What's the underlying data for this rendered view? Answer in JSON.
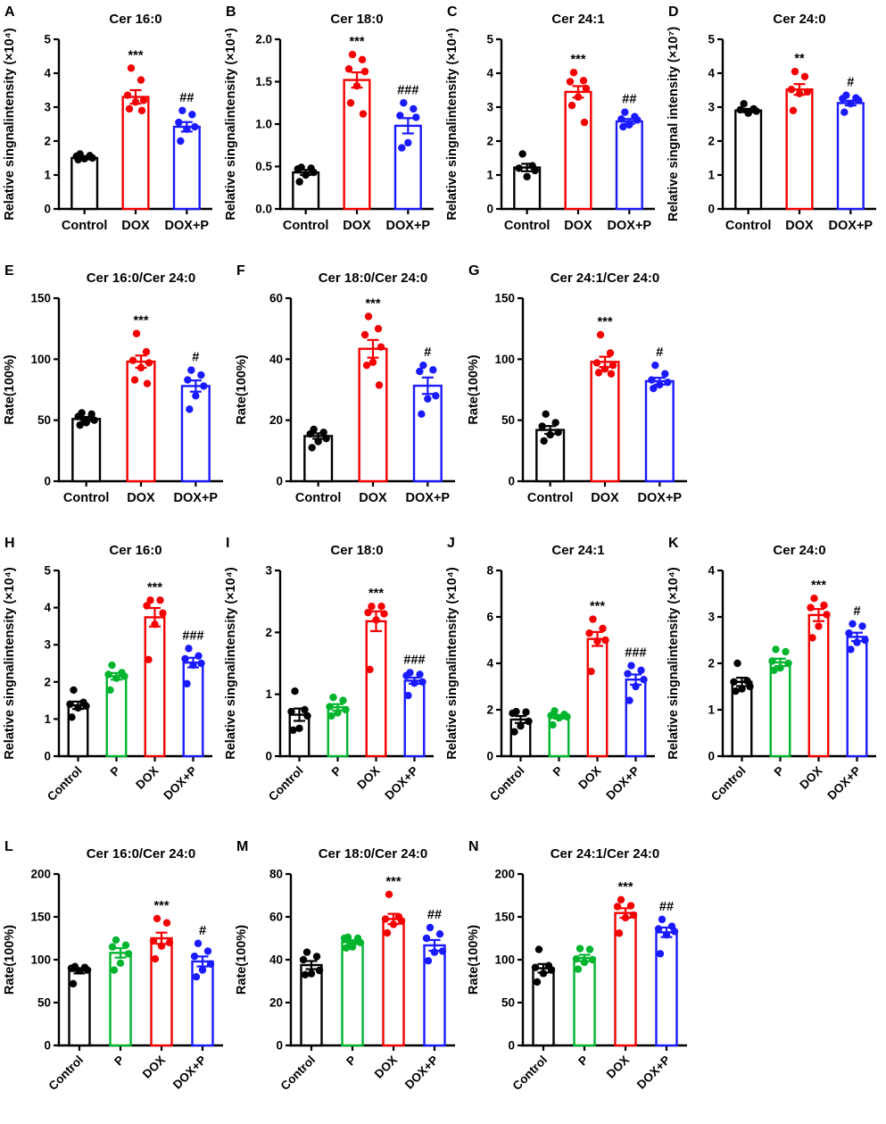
{
  "figure": {
    "background": "#ffffff"
  },
  "colors": {
    "black": "#000000",
    "red": "#f50000",
    "green": "#00b52d",
    "blue": "#1a1aff"
  },
  "chart_data": [
    {
      "letter": "A",
      "row": 0,
      "type": "bar",
      "title": "Cer 16:0",
      "ylabel": "Relative singnalintensity (×10⁴)",
      "ylim": [
        0,
        5
      ],
      "yticks": [
        0,
        1,
        2,
        3,
        4,
        5
      ],
      "ytick_labels": [
        "0",
        "1",
        "2",
        "3",
        "4",
        "5"
      ],
      "categories": [
        "Control",
        "DOX",
        "DOX+P"
      ],
      "bar_colors": [
        "black",
        "red",
        "blue"
      ],
      "means": [
        1.5,
        3.3,
        2.42
      ],
      "sems": [
        0.04,
        0.2,
        0.14
      ],
      "annotations": [
        "",
        "***",
        "##"
      ],
      "points": [
        [
          1.62,
          1.57,
          1.55,
          1.5,
          1.48,
          1.45
        ],
        [
          4.15,
          3.8,
          3.35,
          3.2,
          3.15,
          2.95,
          2.9
        ],
        [
          2.9,
          2.78,
          2.55,
          2.42,
          2.35,
          2.0
        ]
      ]
    },
    {
      "letter": "B",
      "row": 0,
      "type": "bar",
      "title": "Cer 18:0",
      "ylabel": "Relative singnalintensity (×10⁴)",
      "ylim": [
        0,
        2
      ],
      "yticks": [
        0,
        0.5,
        1,
        1.5,
        2
      ],
      "ytick_labels": [
        "0.0",
        "0.5",
        "1.0",
        "1.5",
        "2.0"
      ],
      "categories": [
        "Control",
        "DOX",
        "DOX+P"
      ],
      "bar_colors": [
        "black",
        "red",
        "blue"
      ],
      "means": [
        0.43,
        1.52,
        0.98
      ],
      "sems": [
        0.03,
        0.09,
        0.09
      ],
      "annotations": [
        "",
        "***",
        "###"
      ],
      "points": [
        [
          0.49,
          0.48,
          0.47,
          0.43,
          0.4,
          0.32
        ],
        [
          1.82,
          1.76,
          1.65,
          1.62,
          1.45,
          1.25,
          1.12
        ],
        [
          1.25,
          1.18,
          1.1,
          1.08,
          0.78,
          0.72
        ]
      ]
    },
    {
      "letter": "C",
      "row": 0,
      "type": "bar",
      "title": "Cer 24:1",
      "ylabel": "Relative singnalintensity (×10⁴)",
      "ylim": [
        0,
        5
      ],
      "yticks": [
        0,
        1,
        2,
        3,
        4,
        5
      ],
      "ytick_labels": [
        "0",
        "1",
        "2",
        "3",
        "4",
        "5"
      ],
      "categories": [
        "Control",
        "DOX",
        "DOX+P"
      ],
      "bar_colors": [
        "black",
        "red",
        "blue"
      ],
      "means": [
        1.22,
        3.45,
        2.58
      ],
      "sems": [
        0.11,
        0.17,
        0.07
      ],
      "annotations": [
        "",
        "***",
        "##"
      ],
      "points": [
        [
          1.62,
          1.27,
          1.2,
          1.13,
          0.95
        ],
        [
          4.02,
          3.78,
          3.75,
          3.55,
          3.3,
          3.05,
          2.55
        ],
        [
          2.85,
          2.72,
          2.65,
          2.62,
          2.48,
          2.42
        ]
      ]
    },
    {
      "letter": "D",
      "row": 0,
      "type": "bar",
      "title": "Cer 24:0",
      "ylabel": "Relative singnal intensity (×10⁷)",
      "ylim": [
        0,
        5
      ],
      "yticks": [
        0,
        1,
        2,
        3,
        4,
        5
      ],
      "ytick_labels": [
        "0",
        "1",
        "2",
        "3",
        "4",
        "5"
      ],
      "categories": [
        "Control",
        "DOX",
        "DOX+P"
      ],
      "bar_colors": [
        "black",
        "red",
        "blue"
      ],
      "means": [
        2.9,
        3.52,
        3.12
      ],
      "sems": [
        0.05,
        0.16,
        0.07
      ],
      "annotations": [
        "",
        "**",
        "#"
      ],
      "points": [
        [
          3.1,
          2.95,
          2.92,
          2.88,
          2.82
        ],
        [
          4.05,
          3.9,
          3.52,
          3.45,
          3.4,
          2.9
        ],
        [
          3.35,
          3.27,
          3.25,
          3.2,
          3.1,
          2.85
        ]
      ]
    },
    {
      "letter": "E",
      "row": 1,
      "type": "bar",
      "title": "Cer 16:0/Cer 24:0",
      "ylabel": "Rate(100%)",
      "ylim": [
        0,
        150
      ],
      "yticks": [
        0,
        50,
        100,
        150
      ],
      "ytick_labels": [
        "0",
        "50",
        "100",
        "150"
      ],
      "categories": [
        "Control",
        "DOX",
        "DOX+P"
      ],
      "bar_colors": [
        "black",
        "red",
        "blue"
      ],
      "means": [
        51,
        98,
        78
      ],
      "sems": [
        1.7,
        5,
        4.6
      ],
      "annotations": [
        "",
        "***",
        "#"
      ],
      "points": [
        [
          56,
          55,
          53,
          50,
          48,
          46
        ],
        [
          121,
          106,
          99,
          97,
          93,
          83,
          80
        ],
        [
          91,
          87,
          83,
          78,
          70,
          59
        ]
      ]
    },
    {
      "letter": "F",
      "row": 1,
      "type": "bar",
      "title": "Cer 18:0/Cer 24:0",
      "ylabel": "Rate(100%)",
      "ylim": [
        0,
        60
      ],
      "yticks": [
        0,
        20,
        40,
        60
      ],
      "ytick_labels": [
        "0",
        "20",
        "40",
        "60"
      ],
      "categories": [
        "Control",
        "DOX",
        "DOX+P"
      ],
      "bar_colors": [
        "black",
        "red",
        "blue"
      ],
      "means": [
        14.8,
        43.4,
        31.3
      ],
      "sems": [
        0.9,
        2.9,
        2.7
      ],
      "annotations": [
        "",
        "***",
        "#"
      ],
      "points": [
        [
          17,
          16,
          15.5,
          14,
          13,
          11
        ],
        [
          54,
          50,
          48,
          44,
          39,
          38,
          31.5
        ],
        [
          38,
          36.5,
          36,
          28,
          27,
          22
        ]
      ]
    },
    {
      "letter": "G",
      "row": 1,
      "type": "bar",
      "title": "Cer 24:1/Cer 24:0",
      "ylabel": "Rate(100%)",
      "ylim": [
        0,
        150
      ],
      "yticks": [
        0,
        50,
        100,
        150
      ],
      "ytick_labels": [
        "0",
        "50",
        "100",
        "150"
      ],
      "categories": [
        "Control",
        "DOX",
        "DOX+P"
      ],
      "bar_colors": [
        "black",
        "red",
        "blue"
      ],
      "means": [
        42,
        97.8,
        82
      ],
      "sems": [
        3.2,
        4.2,
        2.8
      ],
      "annotations": [
        "",
        "***",
        "#"
      ],
      "points": [
        [
          55,
          48,
          45,
          40,
          38,
          33
        ],
        [
          120,
          105,
          97,
          95,
          92,
          89,
          88
        ],
        [
          95,
          88,
          83,
          81,
          79,
          76
        ]
      ]
    },
    {
      "letter": "H",
      "row": 2,
      "type": "bar",
      "title": "Cer 16:0",
      "ylabel": "Relative singnalintensity (×10⁴)",
      "ylim": [
        0,
        5
      ],
      "yticks": [
        0,
        1,
        2,
        3,
        4,
        5
      ],
      "ytick_labels": [
        "0",
        "1",
        "2",
        "3",
        "4",
        "5"
      ],
      "categories": [
        "Control",
        "P",
        "DOX",
        "DOX+P"
      ],
      "bar_colors": [
        "black",
        "green",
        "red",
        "blue"
      ],
      "means": [
        1.37,
        2.15,
        3.74,
        2.52
      ],
      "sems": [
        0.1,
        0.09,
        0.25,
        0.13
      ],
      "annotations": [
        "",
        "",
        "***",
        "###"
      ],
      "points": [
        [
          1.78,
          1.45,
          1.4,
          1.35,
          1.3,
          1.05
        ],
        [
          2.45,
          2.25,
          2.2,
          2.15,
          2.1,
          1.78
        ],
        [
          4.2,
          4.2,
          4.05,
          3.85,
          3.55,
          2.6
        ],
        [
          2.9,
          2.7,
          2.62,
          2.5,
          2.45,
          1.95
        ]
      ]
    },
    {
      "letter": "I",
      "row": 2,
      "type": "bar",
      "title": "Cer 18:0",
      "ylabel": "Relative singnalintensity (×10⁴)",
      "ylim": [
        0,
        3
      ],
      "yticks": [
        0,
        1,
        2,
        3
      ],
      "ytick_labels": [
        "0",
        "1",
        "2",
        "3"
      ],
      "categories": [
        "Control",
        "P",
        "DOX",
        "DOX+P"
      ],
      "bar_colors": [
        "black",
        "green",
        "red",
        "blue"
      ],
      "means": [
        0.67,
        0.79,
        2.18,
        1.22
      ],
      "sems": [
        0.1,
        0.05,
        0.16,
        0.05
      ],
      "annotations": [
        "",
        "",
        "***",
        "###"
      ],
      "points": [
        [
          1.05,
          0.75,
          0.72,
          0.65,
          0.45,
          0.42
        ],
        [
          0.95,
          0.9,
          0.8,
          0.75,
          0.7,
          0.65
        ],
        [
          2.42,
          2.42,
          2.32,
          2.3,
          2.2,
          1.4
        ],
        [
          1.35,
          1.32,
          1.3,
          1.2,
          1.18,
          0.98
        ]
      ]
    },
    {
      "letter": "J",
      "row": 2,
      "type": "bar",
      "title": "Cer 24:1",
      "ylabel": "Relative singnalintensity (×10⁴)",
      "ylim": [
        0,
        8
      ],
      "yticks": [
        0,
        2,
        4,
        6,
        8
      ],
      "ytick_labels": [
        "0",
        "2",
        "4",
        "6",
        "8"
      ],
      "categories": [
        "Control",
        "P",
        "DOX",
        "DOX+P"
      ],
      "bar_colors": [
        "black",
        "green",
        "red",
        "blue"
      ],
      "means": [
        1.58,
        1.7,
        5.05,
        3.3
      ],
      "sems": [
        0.15,
        0.08,
        0.3,
        0.22
      ],
      "annotations": [
        "",
        "",
        "***",
        "###"
      ],
      "points": [
        [
          1.92,
          1.9,
          1.85,
          1.5,
          1.3,
          1.05
        ],
        [
          1.95,
          1.8,
          1.75,
          1.7,
          1.65,
          1.35
        ],
        [
          5.9,
          5.5,
          5.3,
          5.0,
          4.95,
          3.65
        ],
        [
          3.9,
          3.7,
          3.55,
          3.3,
          3.0,
          2.4
        ]
      ]
    },
    {
      "letter": "K",
      "row": 2,
      "type": "bar",
      "title": "Cer 24:0",
      "ylabel": "Relative singnalintensity (×10⁴)",
      "ylim": [
        0,
        4
      ],
      "yticks": [
        0,
        1,
        2,
        3,
        4
      ],
      "ytick_labels": [
        "0",
        "1",
        "2",
        "3",
        "4"
      ],
      "categories": [
        "Control",
        "P",
        "DOX",
        "DOX+P"
      ],
      "bar_colors": [
        "black",
        "green",
        "red",
        "blue"
      ],
      "means": [
        1.6,
        2.02,
        3.04,
        2.57
      ],
      "sems": [
        0.09,
        0.08,
        0.13,
        0.09
      ],
      "annotations": [
        "",
        "",
        "***",
        "#"
      ],
      "points": [
        [
          2.0,
          1.62,
          1.6,
          1.5,
          1.45,
          1.4
        ],
        [
          2.3,
          2.25,
          2.05,
          2.0,
          1.9,
          1.85
        ],
        [
          3.4,
          3.25,
          3.2,
          3.05,
          2.8,
          2.55
        ],
        [
          2.85,
          2.8,
          2.65,
          2.5,
          2.45,
          2.3
        ]
      ]
    },
    {
      "letter": "L",
      "row": 3,
      "type": "bar",
      "title": "Cer 16:0/Cer 24:0",
      "ylabel": "Rate(100%)",
      "ylim": [
        0,
        200
      ],
      "yticks": [
        0,
        50,
        100,
        150,
        200
      ],
      "ytick_labels": [
        "0",
        "50",
        "100",
        "150",
        "200"
      ],
      "categories": [
        "Control",
        "P",
        "DOX",
        "DOX+P"
      ],
      "bar_colors": [
        "black",
        "green",
        "red",
        "blue"
      ],
      "means": [
        87,
        108,
        125,
        98
      ],
      "sems": [
        3,
        5.5,
        6.6,
        5.8
      ],
      "annotations": [
        "",
        "",
        "***",
        "#"
      ],
      "points": [
        [
          92,
          91,
          90,
          88,
          87,
          72
        ],
        [
          123,
          117,
          115,
          107,
          96,
          88
        ],
        [
          148,
          143,
          122,
          120,
          116,
          101
        ],
        [
          119,
          110,
          104,
          95,
          88,
          80
        ]
      ]
    },
    {
      "letter": "M",
      "row": 3,
      "type": "bar",
      "title": "Cer 18:0/Cer 24:0",
      "ylabel": "Rate(100%)",
      "ylim": [
        0,
        80
      ],
      "yticks": [
        0,
        20,
        40,
        60,
        80
      ],
      "ytick_labels": [
        "0",
        "20",
        "40",
        "60",
        "80"
      ],
      "categories": [
        "Control",
        "P",
        "DOX",
        "DOX+P"
      ],
      "bar_colors": [
        "black",
        "green",
        "red",
        "blue"
      ],
      "means": [
        37.5,
        48.2,
        59,
        46.7
      ],
      "sems": [
        1.9,
        0.9,
        2.4,
        2.5
      ],
      "annotations": [
        "",
        "",
        "***",
        "##"
      ],
      "points": [
        [
          43.5,
          41.5,
          40,
          35,
          33.5,
          33
        ],
        [
          50.5,
          50,
          50,
          48,
          46,
          45.5
        ],
        [
          70.5,
          60,
          59,
          58,
          56.5,
          52.5
        ],
        [
          55,
          52,
          50,
          44,
          43.5,
          39.5
        ]
      ]
    },
    {
      "letter": "N",
      "row": 3,
      "type": "bar",
      "title": "Cer 24:1/Cer 24:0",
      "ylabel": "Rate(100%)",
      "ylim": [
        0,
        200
      ],
      "yticks": [
        0,
        50,
        100,
        150,
        200
      ],
      "ytick_labels": [
        "0",
        "50",
        "100",
        "150",
        "200"
      ],
      "categories": [
        "Control",
        "P",
        "DOX",
        "DOX+P"
      ],
      "bar_colors": [
        "black",
        "green",
        "red",
        "blue"
      ],
      "means": [
        90,
        102,
        154.5,
        132
      ],
      "sems": [
        5,
        3.7,
        5.6,
        5.6
      ],
      "annotations": [
        "",
        "",
        "***",
        "##"
      ],
      "points": [
        [
          112,
          93,
          91,
          88,
          84,
          74
        ],
        [
          113,
          112,
          101,
          100,
          97,
          89
        ],
        [
          170,
          163,
          162,
          152,
          149,
          131
        ],
        [
          147,
          139,
          136,
          133,
          129,
          107
        ]
      ]
    }
  ]
}
